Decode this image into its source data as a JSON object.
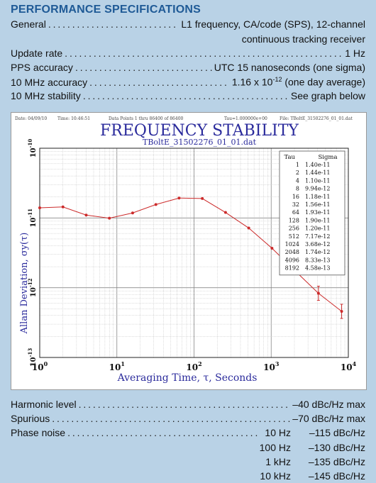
{
  "header": {
    "title": "PERFORMANCE SPECIFICATIONS"
  },
  "specs_top": [
    {
      "label": "General",
      "value": "L1 frequency, CA/code (SPS), 12-channel"
    },
    {
      "label": "",
      "value": "continuous tracking receiver"
    },
    {
      "label": "Update rate",
      "value": "1 Hz"
    },
    {
      "label": "PPS accuracy",
      "value": "UTC 15 nanoseconds (one sigma)"
    },
    {
      "label": "10 MHz accuracy",
      "value_prefix": "1.16 x 10",
      "value_exp": "-12",
      "value_suffix": " (one day average)"
    },
    {
      "label": "10 MHz stability",
      "value": "See graph below"
    }
  ],
  "specs_bottom": [
    {
      "label": "Harmonic level",
      "value": "–40 dBc/Hz max"
    },
    {
      "label": "Spurious",
      "value": "–70 dBc/Hz max"
    },
    {
      "label": "Phase noise",
      "freq": "10 Hz",
      "value": "–115 dBc/Hz"
    }
  ],
  "phase_noise_rows": [
    {
      "freq": "100 Hz",
      "value": "–130 dBc/Hz"
    },
    {
      "freq": "1 kHz",
      "value": "–135 dBc/Hz"
    },
    {
      "freq": "10 kHz",
      "value": "–145 dBc/Hz"
    }
  ],
  "chart_data": {
    "type": "scatter",
    "title": "FREQUENCY STABILITY",
    "subtitle": "TBoltE_31502276_01_01.dat",
    "info": {
      "date": "Date: 04/09/10",
      "time": "Time: 10:46:51",
      "points": "Data Points 1 thru 86400 of 86400",
      "tau": "Tau=1.000000e+00",
      "file": "File: TBoltE_31502276_01_01.dat"
    },
    "xlabel": "Averaging Time, τ, Seconds",
    "ylabel": "Allan Deviation, σy(τ)",
    "xscale": "log",
    "yscale": "log",
    "xlim": [
      1,
      10000
    ],
    "ylim": [
      1e-13,
      1e-10
    ],
    "x_ticks": [
      {
        "base": "10",
        "exp": "0"
      },
      {
        "base": "10",
        "exp": "1"
      },
      {
        "base": "10",
        "exp": "2"
      },
      {
        "base": "10",
        "exp": "3"
      },
      {
        "base": "10",
        "exp": "4"
      }
    ],
    "y_ticks": [
      {
        "base": "10",
        "exp": "-10"
      },
      {
        "base": "10",
        "exp": "-11"
      },
      {
        "base": "10",
        "exp": "-12"
      },
      {
        "base": "10",
        "exp": "-13"
      }
    ],
    "legend": {
      "headers": [
        "Tau",
        "Sigma"
      ],
      "placement": "top-right"
    },
    "table": [
      {
        "tau": "1",
        "sigma": "1.40e-11"
      },
      {
        "tau": "2",
        "sigma": "1.44e-11"
      },
      {
        "tau": "4",
        "sigma": "1.10e-11"
      },
      {
        "tau": "8",
        "sigma": "9.94e-12"
      },
      {
        "tau": "16",
        "sigma": "1.18e-11"
      },
      {
        "tau": "32",
        "sigma": "1.56e-11"
      },
      {
        "tau": "64",
        "sigma": "1.93e-11"
      },
      {
        "tau": "128",
        "sigma": "1.90e-11"
      },
      {
        "tau": "256",
        "sigma": "1.20e-11"
      },
      {
        "tau": "512",
        "sigma": "7.17e-12"
      },
      {
        "tau": "1024",
        "sigma": "3.68e-12"
      },
      {
        "tau": "2048",
        "sigma": "1.74e-12"
      },
      {
        "tau": "4096",
        "sigma": "8.33e-13"
      },
      {
        "tau": "8192",
        "sigma": "4.58e-13"
      }
    ],
    "x": [
      1,
      2,
      4,
      8,
      16,
      32,
      64,
      128,
      256,
      512,
      1024,
      2048,
      4096,
      8192
    ],
    "y": [
      1.4e-11,
      1.44e-11,
      1.1e-11,
      9.94e-12,
      1.18e-11,
      1.56e-11,
      1.93e-11,
      1.9e-11,
      1.2e-11,
      7.17e-12,
      3.68e-12,
      1.74e-12,
      8.33e-13,
      4.58e-13
    ],
    "grid": true,
    "colors": {
      "series": "#cc2b2b",
      "title": "#2b2b9c",
      "axis_label": "#2b2b9c"
    }
  }
}
